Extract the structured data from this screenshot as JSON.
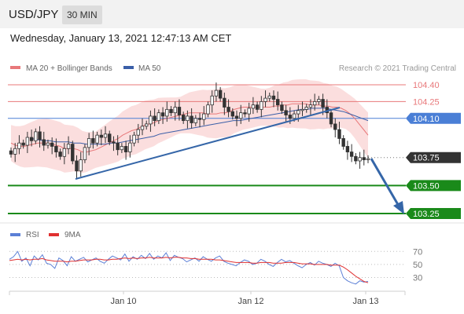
{
  "header": {
    "pair": "USD/JPY",
    "timeframe": "30 MIN"
  },
  "timestamp": "Wednesday, January 13, 2021 12:47:13 AM CET",
  "copyright": "Research © 2021 Trading Central",
  "colors": {
    "resistance": "#e8787a",
    "current_level": "#4a7fd6",
    "support": "#1a8a1a",
    "last_price_box": "#333333",
    "bollinger_fill": "#f9d3d3",
    "ma20": "#e8787a",
    "ma50": "#3b5fa8",
    "candle": "#333333",
    "arrow": "#3566a8",
    "trendline": "#3566a8",
    "rsi": "#5b7fd6",
    "rsi_ma": "#e03030"
  },
  "chart_data": [
    {
      "type": "candlestick",
      "title": "USD/JPY",
      "legend": [
        "MA 20 + Bollinger Bands",
        "MA 50"
      ],
      "x_tick_labels": [
        "Jan 10",
        "Jan 12",
        "Jan 13"
      ],
      "levels": [
        {
          "value": 104.4,
          "label": "104.40",
          "kind": "resistance"
        },
        {
          "value": 104.25,
          "label": "104.25",
          "kind": "resistance"
        },
        {
          "value": 104.1,
          "label": "104.10",
          "kind": "pivot"
        },
        {
          "value": 103.75,
          "label": "103.75",
          "kind": "last"
        },
        {
          "value": 103.5,
          "label": "103.50",
          "kind": "support"
        },
        {
          "value": 103.25,
          "label": "103.25",
          "kind": "support"
        }
      ],
      "ylim": [
        103.23,
        104.52
      ],
      "last_price": 103.75,
      "close_series": [
        103.78,
        103.83,
        103.88,
        103.86,
        103.93,
        103.9,
        103.98,
        103.91,
        103.86,
        103.88,
        103.85,
        103.8,
        103.76,
        103.83,
        103.87,
        103.72,
        103.63,
        103.73,
        103.84,
        103.92,
        103.88,
        103.95,
        103.93,
        103.96,
        103.89,
        103.88,
        103.82,
        103.85,
        103.8,
        103.88,
        103.95,
        104.0,
        104.03,
        104.05,
        104.12,
        104.08,
        104.15,
        104.12,
        104.18,
        104.15,
        104.2,
        104.13,
        104.08,
        104.12,
        104.06,
        104.1,
        104.09,
        104.14,
        104.22,
        104.3,
        104.35,
        104.28,
        104.2,
        104.16,
        104.12,
        104.1,
        104.15,
        104.14,
        104.19,
        104.22,
        104.18,
        104.25,
        104.28,
        104.3,
        104.27,
        104.22,
        104.17,
        104.13,
        104.1,
        104.14,
        104.17,
        104.18,
        104.2,
        104.22,
        104.25,
        104.27,
        104.2,
        104.15,
        104.05,
        104.0,
        103.92,
        103.85,
        103.8,
        103.76,
        103.72,
        103.75,
        103.73,
        103.74
      ],
      "ma20_series": [
        103.88,
        103.86,
        103.85,
        103.85,
        103.86,
        103.87,
        103.88,
        103.88,
        103.88,
        103.87,
        103.86,
        103.85,
        103.83,
        103.83,
        103.83,
        103.82,
        103.8,
        103.8,
        103.81,
        103.82,
        103.84,
        103.86,
        103.88,
        103.9,
        103.92,
        103.95,
        103.97,
        103.99,
        104.0,
        104.02,
        104.04,
        104.05,
        104.06,
        104.08,
        104.09,
        104.1,
        104.11,
        104.12,
        104.13,
        104.14,
        104.15,
        104.15,
        104.15,
        104.15,
        104.14,
        104.14,
        104.14,
        104.15,
        104.15,
        104.16,
        104.18,
        104.19,
        104.2,
        104.2,
        104.2,
        104.2,
        104.2,
        104.2,
        104.2,
        104.21,
        104.21,
        104.22,
        104.22,
        104.23,
        104.23,
        104.23,
        104.23,
        104.22,
        104.22,
        104.22,
        104.21,
        104.21,
        104.2,
        104.2,
        104.19,
        104.17,
        104.14,
        104.1,
        104.05,
        104.0,
        103.95
      ],
      "ma50_series": [
        103.92,
        103.91,
        103.9,
        103.9,
        103.89,
        103.89,
        103.89,
        103.88,
        103.88,
        103.87,
        103.87,
        103.87,
        103.87,
        103.88,
        103.88,
        103.89,
        103.9,
        103.91,
        103.92,
        103.93,
        103.94,
        103.96,
        103.97,
        103.98,
        103.99,
        104.0,
        104.01,
        104.02,
        104.03,
        104.04,
        104.05,
        104.06,
        104.07,
        104.08,
        104.08,
        104.09,
        104.1,
        104.11,
        104.12,
        104.13,
        104.14,
        104.15,
        104.16,
        104.17,
        104.18,
        104.18,
        104.19,
        104.19,
        104.19,
        104.18,
        104.17,
        104.16,
        104.14,
        104.12,
        104.1,
        104.08
      ]
    },
    {
      "type": "line",
      "title": "RSI",
      "legend": [
        "RSI",
        "9MA"
      ],
      "y_tick_labels": [
        "70",
        "50",
        "30"
      ],
      "ylim": [
        15,
        80
      ],
      "rsi": [
        58,
        62,
        70,
        55,
        60,
        48,
        63,
        57,
        65,
        52,
        50,
        44,
        60,
        56,
        48,
        62,
        55,
        58,
        61,
        54,
        57,
        60,
        55,
        52,
        58,
        63,
        60,
        57,
        66,
        55,
        62,
        58,
        64,
        59,
        67,
        58,
        63,
        60,
        68,
        56,
        64,
        61,
        59,
        54,
        57,
        60,
        55,
        62,
        58,
        55,
        60,
        63,
        55,
        52,
        50,
        48,
        53,
        57,
        55,
        50,
        52,
        58,
        55,
        50,
        47,
        53,
        58,
        54,
        56,
        52,
        48,
        45,
        50,
        53,
        49,
        55,
        52,
        50,
        47,
        52,
        48,
        30,
        25,
        22,
        20,
        25,
        23,
        24
      ],
      "ma9": [
        56,
        57,
        58,
        57,
        58,
        57,
        58,
        58,
        59,
        57,
        56,
        55,
        55,
        55,
        54,
        55,
        55,
        56,
        57,
        57,
        57,
        58,
        58,
        57,
        57,
        58,
        58,
        59,
        60,
        59,
        60,
        59,
        60,
        60,
        61,
        60,
        60,
        60,
        61,
        60,
        61,
        61,
        60,
        60,
        59,
        59,
        58,
        58,
        58,
        58,
        57,
        57,
        56,
        55,
        54,
        53,
        53,
        53,
        53,
        52,
        52,
        53,
        53,
        53,
        52,
        52,
        52,
        53,
        53,
        53,
        52,
        51,
        51,
        51,
        50,
        50,
        50,
        50,
        49,
        49,
        49,
        46,
        42,
        37,
        32,
        28,
        24,
        22
      ]
    }
  ]
}
